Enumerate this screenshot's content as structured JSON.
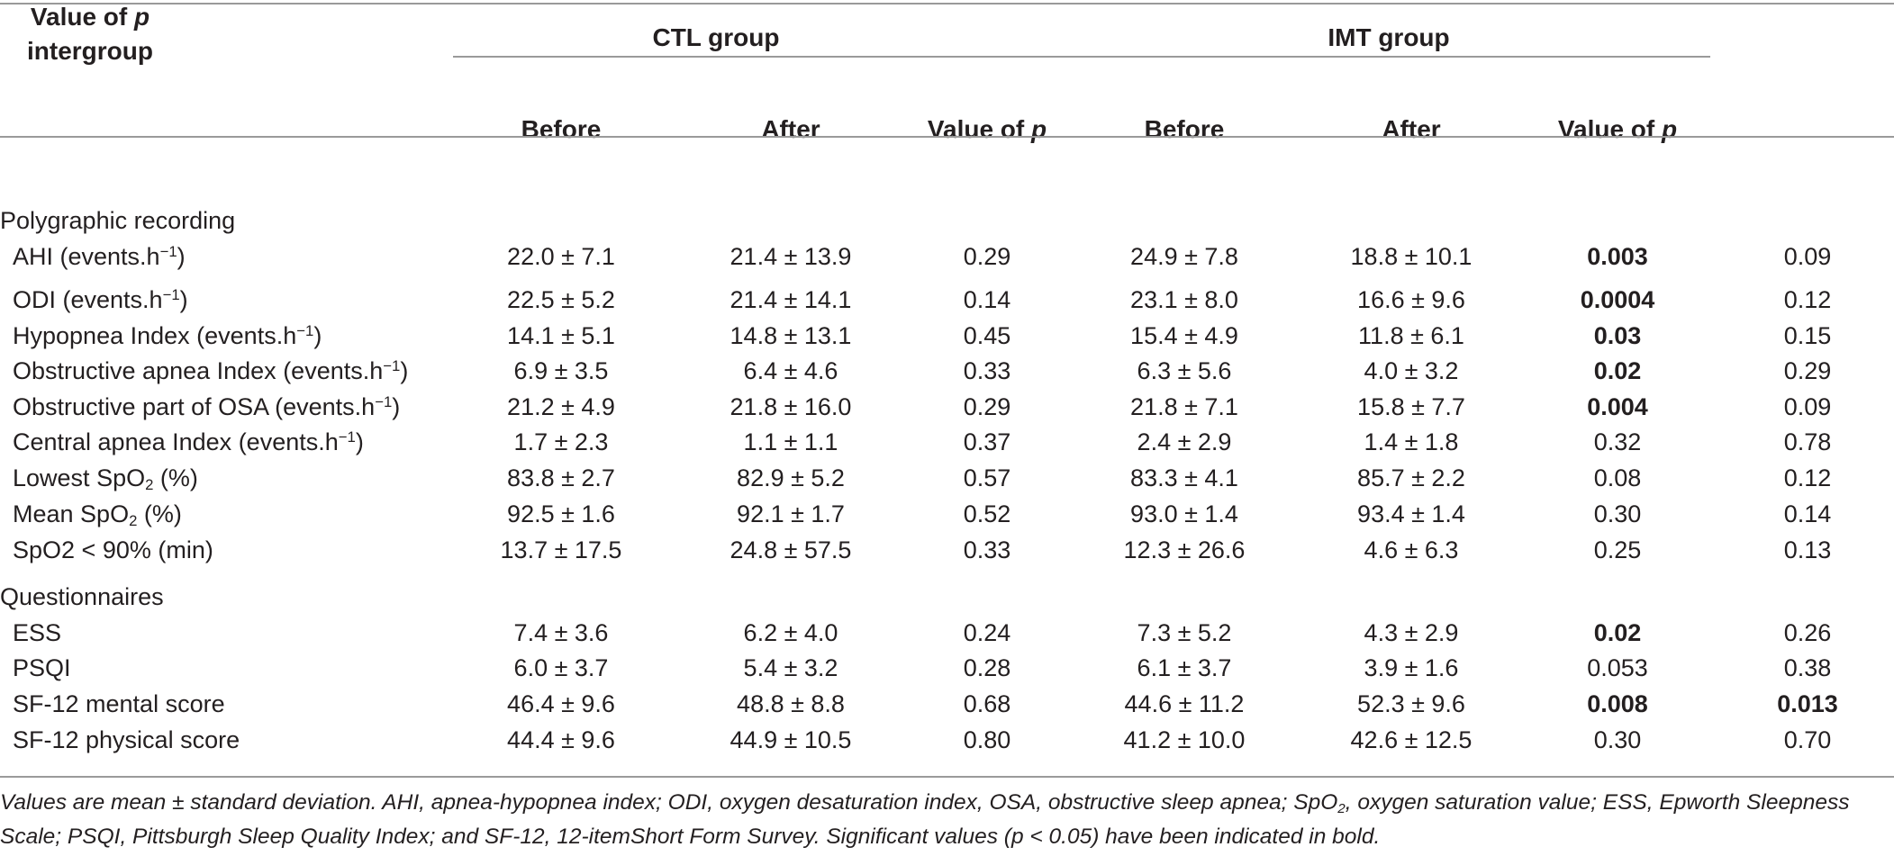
{
  "headers": {
    "group_ctl": "CTL group",
    "group_imt": "IMT group",
    "before": "Before",
    "after": "After",
    "value_of": "Value of",
    "p": "p",
    "intergroup": "intergroup"
  },
  "sections": {
    "polygraphic": "Polygraphic recording",
    "questionnaires": "Questionnaires"
  },
  "label_parts": {
    "unit_prefix": "(events.h",
    "unit_sup": "−1",
    "unit_suffix": ")",
    "spo": "SpO",
    "two": "2",
    "pct": " (%)",
    "ahi": "AHI ",
    "odi": "ODI ",
    "hypopnea": "Hypopnea Index ",
    "obstructive_apnea": "Obstructive apnea Index ",
    "obstructive_part": "Obstructive part of OSA ",
    "central_apnea": "Central apnea Index ",
    "lowest": "Lowest ",
    "mean": "Mean "
  },
  "rows": [
    {
      "label": "",
      "ctl_before": "22.0 ± 7.1",
      "ctl_after": "21.4 ± 13.9",
      "ctl_p": "0.29",
      "imt_before": "24.9 ± 7.8",
      "imt_after": "18.8 ± 10.1",
      "imt_p": "0.003",
      "p_inter": "0.09"
    },
    {
      "label": "",
      "ctl_before": "22.5 ± 5.2",
      "ctl_after": "21.4 ± 14.1",
      "ctl_p": "0.14",
      "imt_before": "23.1 ± 8.0",
      "imt_after": "16.6 ± 9.6",
      "imt_p": "0.0004",
      "p_inter": "0.12"
    },
    {
      "label": "",
      "ctl_before": "14.1 ± 5.1",
      "ctl_after": "14.8 ± 13.1",
      "ctl_p": "0.45",
      "imt_before": "15.4 ± 4.9",
      "imt_after": "11.8 ± 6.1",
      "imt_p": "0.03",
      "p_inter": "0.15"
    },
    {
      "label": "",
      "ctl_before": "6.9 ± 3.5",
      "ctl_after": "6.4 ± 4.6",
      "ctl_p": "0.33",
      "imt_before": "6.3 ± 5.6",
      "imt_after": "4.0 ± 3.2",
      "imt_p": "0.02",
      "p_inter": "0.29"
    },
    {
      "label": "",
      "ctl_before": "21.2 ± 4.9",
      "ctl_after": "21.8 ± 16.0",
      "ctl_p": "0.29",
      "imt_before": "21.8 ± 7.1",
      "imt_after": "15.8 ± 7.7",
      "imt_p": "0.004",
      "p_inter": "0.09"
    },
    {
      "label": "",
      "ctl_before": "1.7 ± 2.3",
      "ctl_after": "1.1 ± 1.1",
      "ctl_p": "0.37",
      "imt_before": "2.4 ± 2.9",
      "imt_after": "1.4 ± 1.8",
      "imt_p": "0.32",
      "p_inter": "0.78"
    },
    {
      "label": "",
      "ctl_before": "83.8 ± 2.7",
      "ctl_after": "82.9 ± 5.2",
      "ctl_p": "0.57",
      "imt_before": "83.3 ± 4.1",
      "imt_after": "85.7 ± 2.2",
      "imt_p": "0.08",
      "p_inter": "0.12"
    },
    {
      "label": "",
      "ctl_before": "92.5 ± 1.6",
      "ctl_after": "92.1 ± 1.7",
      "ctl_p": "0.52",
      "imt_before": "93.0 ± 1.4",
      "imt_after": "93.4 ± 1.4",
      "imt_p": "0.30",
      "p_inter": "0.14"
    },
    {
      "label": "SpO2 < 90% (min)",
      "ctl_before": "13.7 ± 17.5",
      "ctl_after": "24.8 ± 57.5",
      "ctl_p": "0.33",
      "imt_before": "12.3 ± 26.6",
      "imt_after": "4.6 ± 6.3",
      "imt_p": "0.25",
      "p_inter": "0.13"
    },
    {
      "label": "ESS",
      "ctl_before": "7.4 ± 3.6",
      "ctl_after": "6.2 ± 4.0",
      "ctl_p": "0.24",
      "imt_before": "7.3 ± 5.2",
      "imt_after": "4.3 ± 2.9",
      "imt_p": "0.02",
      "p_inter": "0.26"
    },
    {
      "label": "PSQI",
      "ctl_before": "6.0 ± 3.7",
      "ctl_after": "5.4 ± 3.2",
      "ctl_p": "0.28",
      "imt_before": "6.1 ± 3.7",
      "imt_after": "3.9 ± 1.6",
      "imt_p": "0.053",
      "p_inter": "0.38"
    },
    {
      "label": "SF-12 mental score",
      "ctl_before": "46.4 ± 9.6",
      "ctl_after": "48.8 ± 8.8",
      "ctl_p": "0.68",
      "imt_before": "44.6 ± 11.2",
      "imt_after": "52.3 ± 9.6",
      "imt_p": "0.008",
      "p_inter": "0.013"
    },
    {
      "label": "SF-12 physical score",
      "ctl_before": "44.4 ± 9.6",
      "ctl_after": "44.9 ± 10.5",
      "ctl_p": "0.80",
      "imt_before": "41.2 ± 10.0",
      "imt_after": "42.6 ± 12.5",
      "imt_p": "0.30",
      "p_inter": "0.70"
    }
  ],
  "footnote": {
    "part1": "Values are mean ± standard deviation. AHI, apnea-hypopnea index; ODI, oxygen desaturation index, OSA, obstructive sleep apnea; SpO",
    "sub": "2",
    "part2": ", oxygen saturation value; ESS, Epworth Sleepness Scale; PSQI, Pittsburgh Sleep Quality Index; and SF-12, 12-itemShort Form Survey. Significant values (p < 0.05) have been indicated in bold."
  }
}
